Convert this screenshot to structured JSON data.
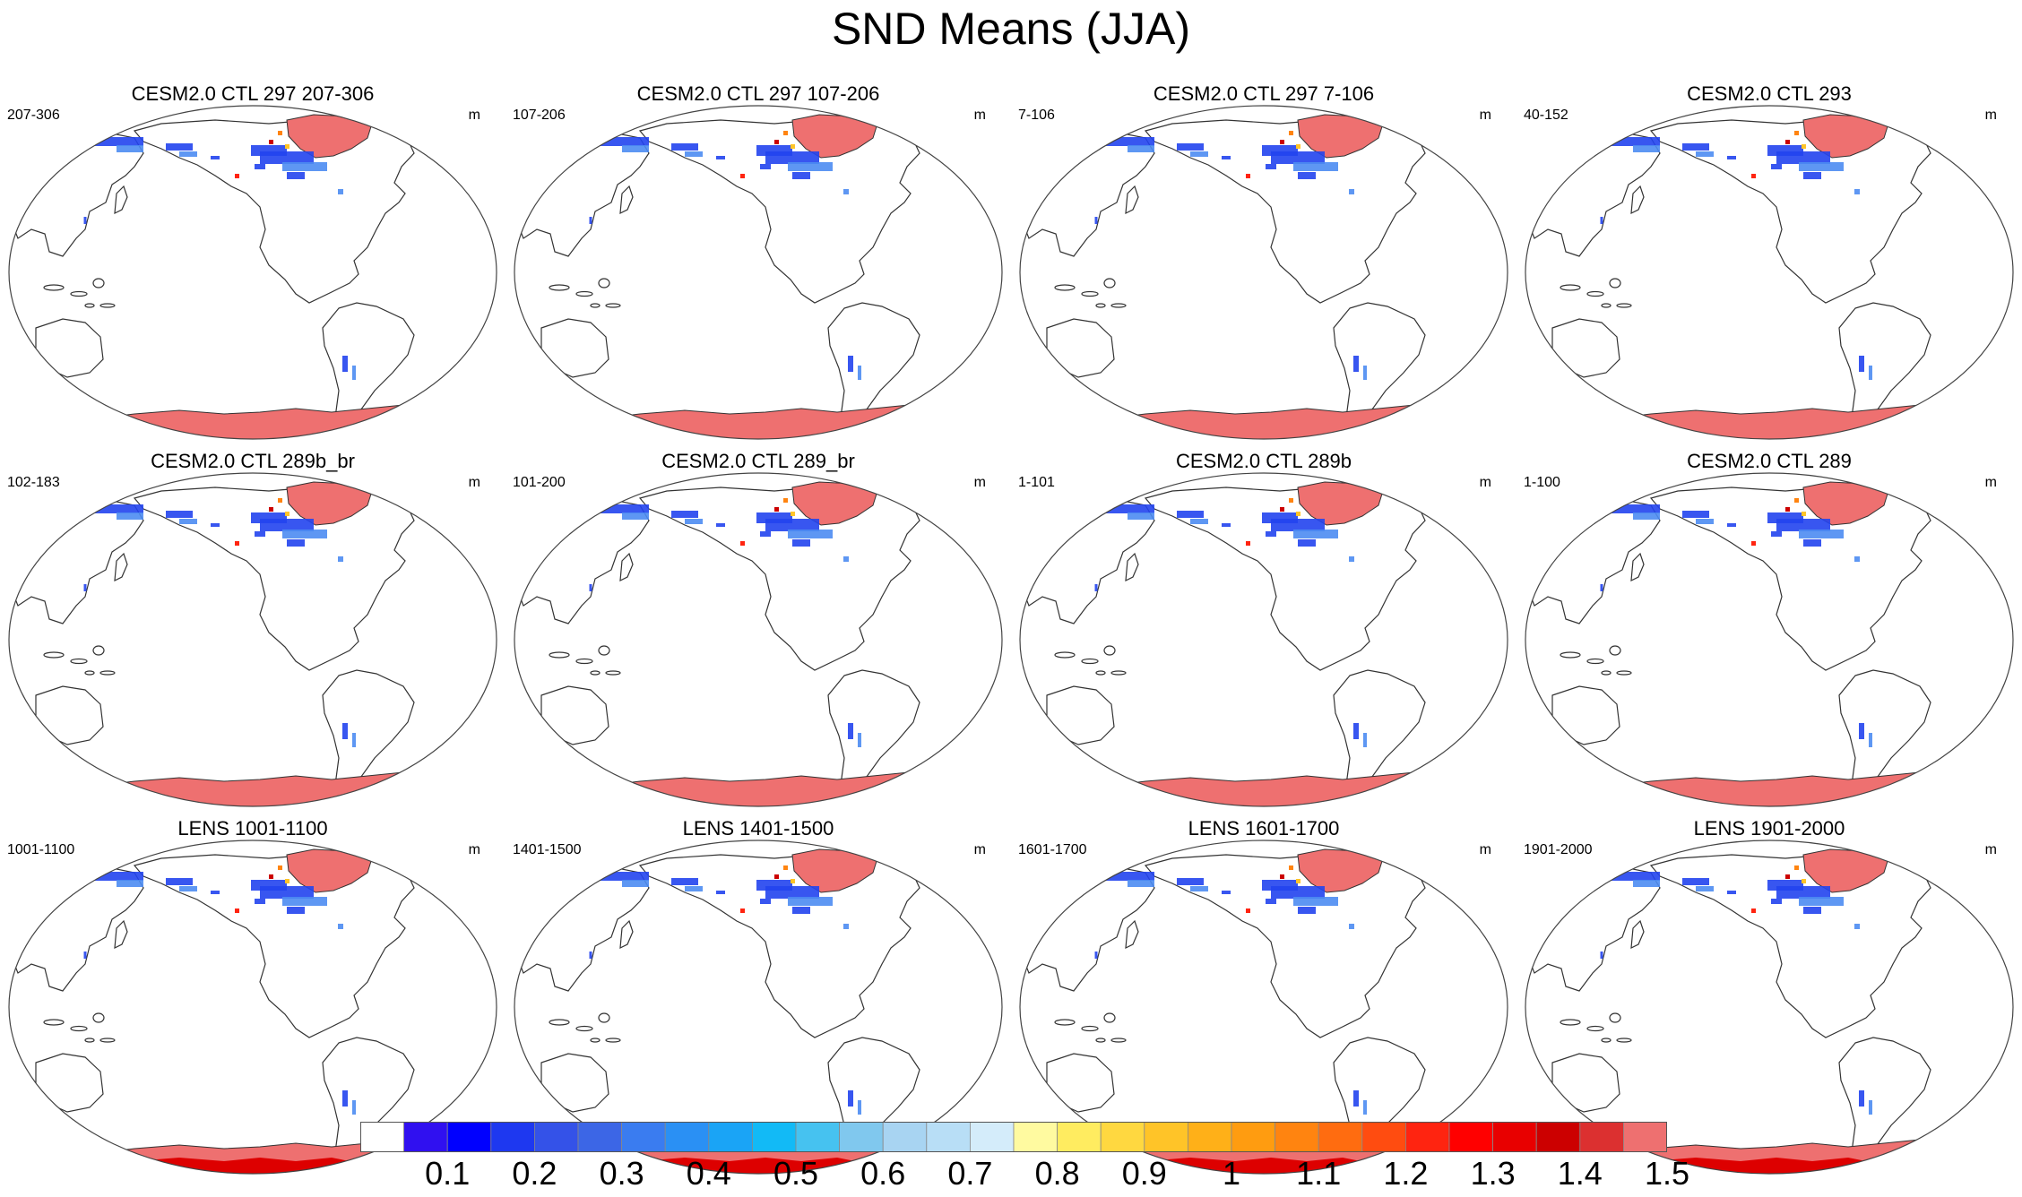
{
  "title": "SND Means (JJA)",
  "panels": [
    {
      "title": "CESM2.0 CTL 297 207-306",
      "left": "207-306",
      "right": "m",
      "type": "ctl"
    },
    {
      "title": "CESM2.0 CTL 297 107-206",
      "left": "107-206",
      "right": "m",
      "type": "ctl"
    },
    {
      "title": "CESM2.0 CTL 297 7-106",
      "left": "7-106",
      "right": "m",
      "type": "ctl"
    },
    {
      "title": "CESM2.0 CTL 293",
      "left": "40-152",
      "right": "m",
      "type": "ctl"
    },
    {
      "title": "CESM2.0 CTL 289b_br",
      "left": "102-183",
      "right": "m",
      "type": "ctl"
    },
    {
      "title": "CESM2.0 CTL 289_br",
      "left": "101-200",
      "right": "m",
      "type": "ctl"
    },
    {
      "title": "CESM2.0 CTL 289b",
      "left": "1-101",
      "right": "m",
      "type": "ctl"
    },
    {
      "title": "CESM2.0 CTL 289",
      "left": "1-100",
      "right": "m",
      "type": "ctl"
    },
    {
      "title": "LENS 1001-1100",
      "left": "1001-1100",
      "right": "m",
      "type": "lens"
    },
    {
      "title": "LENS 1401-1500",
      "left": "1401-1500",
      "right": "m",
      "type": "lens"
    },
    {
      "title": "LENS 1601-1700",
      "left": "1601-1700",
      "right": "m",
      "type": "lens"
    },
    {
      "title": "LENS 1901-2000",
      "left": "1901-2000",
      "right": "m",
      "type": "lens"
    }
  ],
  "colorbar": {
    "labels": [
      "0.1",
      "0.2",
      "0.3",
      "0.4",
      "0.5",
      "0.6",
      "0.7",
      "0.8",
      "0.9",
      "1",
      "1.1",
      "1.2",
      "1.3",
      "1.4",
      "1.5"
    ],
    "colors": [
      "#ffffff",
      "#3010f0",
      "#0000ff",
      "#1e38f0",
      "#3452e8",
      "#3c66e6",
      "#3a7cf0",
      "#2a90f4",
      "#1aa4f6",
      "#12baf6",
      "#46c2f0",
      "#80c8ee",
      "#a8d4f2",
      "#b8def6",
      "#d4ecfa",
      "#fffaa0",
      "#ffec60",
      "#ffd840",
      "#ffc428",
      "#ffb018",
      "#ff9c10",
      "#ff8410",
      "#ff6c10",
      "#ff4c10",
      "#ff2410",
      "#ff0000",
      "#e80000",
      "#cc0000",
      "#dc3030",
      "#ee7070"
    ]
  },
  "map_colors": {
    "antarctica": "#ee7070",
    "antarctica_deep": "#dd0000",
    "greenland": "#ee7070",
    "snow_blue": "#2244ee",
    "snow_light": "#4c8cf2",
    "land_outline": "#333333"
  }
}
